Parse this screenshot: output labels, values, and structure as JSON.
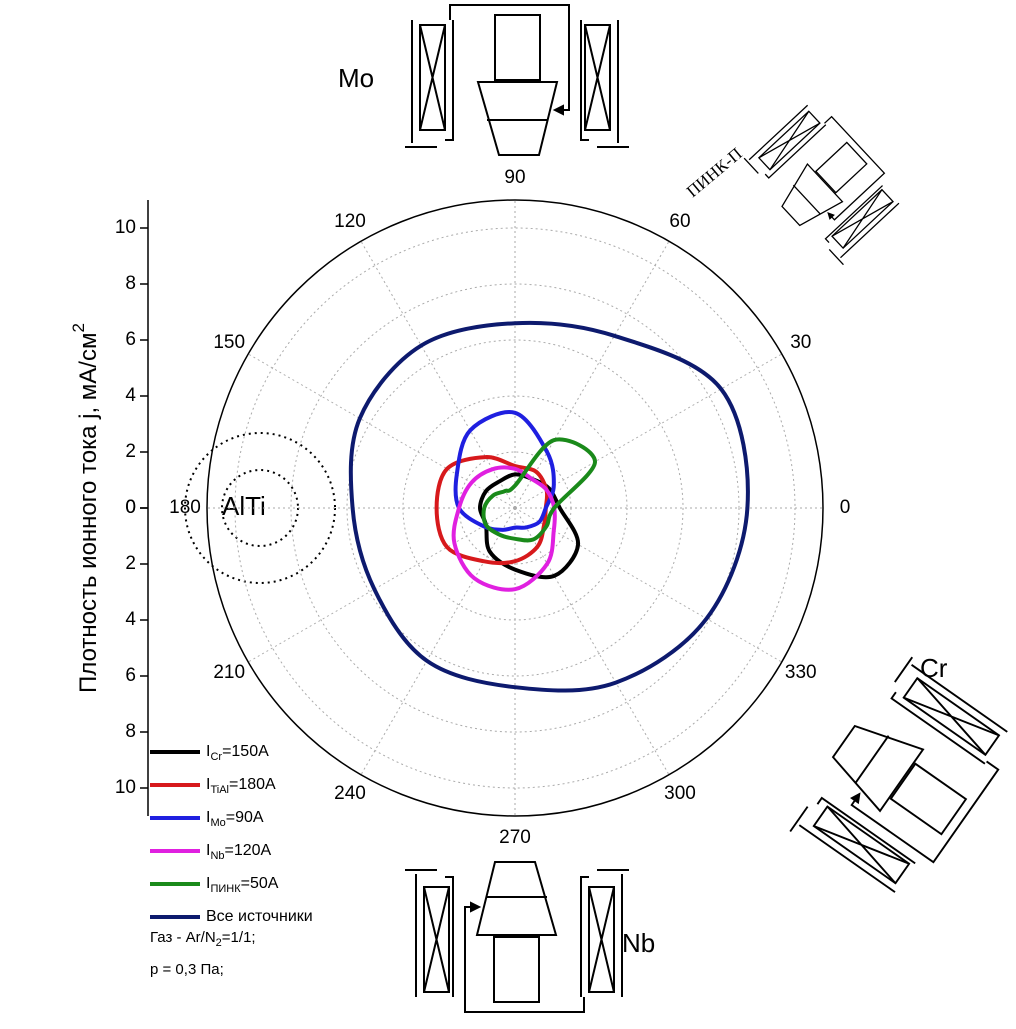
{
  "chart_data": {
    "type": "polar",
    "y_label": "Плотность ионного тока j, мА/см",
    "y_label_sup": "2",
    "theta": [
      0,
      30,
      60,
      90,
      120,
      150,
      180,
      210,
      240,
      270,
      300,
      330
    ],
    "xticks": [
      0,
      30,
      60,
      90,
      120,
      150,
      180,
      210,
      240,
      270,
      300,
      330
    ],
    "ylim": [
      0,
      11
    ],
    "yticks": [
      0,
      2,
      4,
      6,
      8,
      10
    ],
    "grid": true,
    "series": [
      {
        "legend_label": [
          "I",
          "Cr",
          "=150A"
        ],
        "color": "#000000",
        "values": [
          1.6,
          1.4,
          1.2,
          1.2,
          1.1,
          1.2,
          1.25,
          1.2,
          1.8,
          2.2,
          2.8,
          2.6
        ]
      },
      {
        "legend_label": [
          "I",
          "TiAl",
          "=180A"
        ],
        "color": "#d7191c",
        "values": [
          1.1,
          1.3,
          1.5,
          1.5,
          2.1,
          2.8,
          2.8,
          2.8,
          2.2,
          1.9,
          1.6,
          1.2
        ]
      },
      {
        "legend_label": [
          "I",
          "Mo",
          "=90A"
        ],
        "color": "#1f1fe0",
        "values": [
          1.1,
          1.6,
          2.3,
          3.4,
          3.2,
          2.4,
          2.0,
          1.3,
          0.9,
          0.7,
          0.8,
          1.0
        ]
      },
      {
        "legend_label": [
          "I",
          "Nb",
          "=120A"
        ],
        "color": "#e020e0",
        "values": [
          1.4,
          1.3,
          1.2,
          1.4,
          1.6,
          1.8,
          2.0,
          2.5,
          2.9,
          2.9,
          2.3,
          1.6
        ]
      },
      {
        "legend_label": [
          "I",
          "ПИНК",
          "=50A"
        ],
        "color": "#1a8a1a",
        "values": [
          1.4,
          3.3,
          2.8,
          0.8,
          0.7,
          0.9,
          1.1,
          1.2,
          1.1,
          1.1,
          1.3,
          1.3
        ]
      },
      {
        "legend_label": [
          "Все источники",
          "",
          ""
        ],
        "color": "#0d1a6e",
        "values": [
          8.3,
          8.5,
          7.1,
          6.6,
          6.7,
          6.4,
          5.8,
          5.8,
          6.3,
          6.4,
          7.2,
          7.9
        ]
      }
    ],
    "notes": [
      [
        "Газ - Ar/N",
        "2",
        "=1/1;"
      ],
      [
        "p = 0,3 Па;",
        "",
        ""
      ]
    ],
    "sources": {
      "mo": "Mo",
      "nb": "Nb",
      "cr": "Cr",
      "alti": "AlTi",
      "pink": "ПИНК-П"
    }
  }
}
